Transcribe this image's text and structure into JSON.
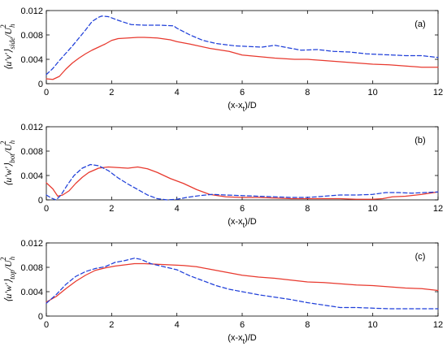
{
  "colors": {
    "red": "#e8392e",
    "blue": "#1f3fd9",
    "axis": "#000000",
    "background": "#ffffff"
  },
  "chart_data": [
    {
      "type": "line",
      "panel_label": "(a)",
      "xlabel_base": "(x-x",
      "xlabel_sub": "t",
      "xlabel_tail": ")/D",
      "ylabel_main": "⟨u′v′⟩",
      "ylabel_sub": "side",
      "ylabel_den": "/U",
      "ylabel_den_sub": "h",
      "ylabel_den_sup": "2",
      "xlim": [
        0,
        12
      ],
      "ylim": [
        0,
        0.012
      ],
      "x_ticks": [
        0,
        2,
        4,
        6,
        8,
        10,
        12
      ],
      "y_ticks": [
        0,
        0.004,
        0.008,
        0.012
      ],
      "y_tick_labels": [
        "0",
        "0.004",
        "0.008",
        "0.012"
      ],
      "x_tick_labels": [
        "0",
        "2",
        "4",
        "6",
        "8",
        "10",
        "12"
      ],
      "grid": false,
      "series": [
        {
          "color": "red",
          "style": "solid",
          "points": [
            [
              0,
              0.0008
            ],
            [
              0.2,
              0.0007
            ],
            [
              0.4,
              0.0012
            ],
            [
              0.6,
              0.0024
            ],
            [
              0.8,
              0.0034
            ],
            [
              1,
              0.0042
            ],
            [
              1.2,
              0.0049
            ],
            [
              1.4,
              0.0055
            ],
            [
              1.6,
              0.006
            ],
            [
              1.8,
              0.0065
            ],
            [
              2,
              0.0071
            ],
            [
              2.2,
              0.0074
            ],
            [
              2.5,
              0.0075
            ],
            [
              2.8,
              0.0076
            ],
            [
              3,
              0.0076
            ],
            [
              3.4,
              0.0075
            ],
            [
              3.8,
              0.0072
            ],
            [
              4,
              0.0069
            ],
            [
              4.4,
              0.0065
            ],
            [
              5,
              0.0058
            ],
            [
              5.6,
              0.0053
            ],
            [
              6,
              0.0047
            ],
            [
              6.6,
              0.0044
            ],
            [
              7,
              0.0042
            ],
            [
              7.6,
              0.004
            ],
            [
              8,
              0.004
            ],
            [
              8.5,
              0.0038
            ],
            [
              9,
              0.0036
            ],
            [
              9.5,
              0.0034
            ],
            [
              10,
              0.0032
            ],
            [
              10.5,
              0.0031
            ],
            [
              11,
              0.0029
            ],
            [
              11.5,
              0.0027
            ],
            [
              12,
              0.0027
            ]
          ]
        },
        {
          "color": "blue",
          "style": "dashed",
          "points": [
            [
              0,
              0.0015
            ],
            [
              0.2,
              0.0025
            ],
            [
              0.4,
              0.0038
            ],
            [
              0.6,
              0.005
            ],
            [
              0.8,
              0.0062
            ],
            [
              1,
              0.0075
            ],
            [
              1.2,
              0.0088
            ],
            [
              1.4,
              0.0102
            ],
            [
              1.6,
              0.0109
            ],
            [
              1.7,
              0.0111
            ],
            [
              1.9,
              0.011
            ],
            [
              2.2,
              0.0104
            ],
            [
              2.6,
              0.0097
            ],
            [
              3,
              0.0096
            ],
            [
              3.5,
              0.0096
            ],
            [
              3.9,
              0.0095
            ],
            [
              4,
              0.0091
            ],
            [
              4.4,
              0.008
            ],
            [
              4.8,
              0.0071
            ],
            [
              5.2,
              0.0066
            ],
            [
              5.8,
              0.0062
            ],
            [
              6.2,
              0.0061
            ],
            [
              6.6,
              0.006
            ],
            [
              7,
              0.0063
            ],
            [
              7.3,
              0.006
            ],
            [
              7.8,
              0.0055
            ],
            [
              8.3,
              0.0056
            ],
            [
              8.8,
              0.0053
            ],
            [
              9.3,
              0.0052
            ],
            [
              9.8,
              0.0049
            ],
            [
              10.2,
              0.0048
            ],
            [
              10.6,
              0.0047
            ],
            [
              11,
              0.0046
            ],
            [
              11.5,
              0.0046
            ],
            [
              12,
              0.0043
            ]
          ]
        }
      ]
    },
    {
      "type": "line",
      "panel_label": "(b)",
      "xlabel_base": "(x-x",
      "xlabel_sub": "t",
      "xlabel_tail": ")/D",
      "ylabel_main": "⟨u′w′⟩",
      "ylabel_sub": "bot",
      "ylabel_den": "/U",
      "ylabel_den_sub": "h",
      "ylabel_den_sup": "2",
      "xlim": [
        0,
        12
      ],
      "ylim": [
        0,
        0.012
      ],
      "x_ticks": [
        0,
        2,
        4,
        6,
        8,
        10,
        12
      ],
      "y_ticks": [
        0,
        0.004,
        0.008,
        0.012
      ],
      "y_tick_labels": [
        "0",
        "0.004",
        "0.008",
        "0.012"
      ],
      "x_tick_labels": [
        "0",
        "2",
        "4",
        "6",
        "8",
        "10",
        "12"
      ],
      "grid": false,
      "series": [
        {
          "color": "red",
          "style": "solid",
          "points": [
            [
              0,
              0.0028
            ],
            [
              0.2,
              0.0018
            ],
            [
              0.35,
              0.0006
            ],
            [
              0.5,
              0.0008
            ],
            [
              0.7,
              0.0015
            ],
            [
              0.9,
              0.0027
            ],
            [
              1.1,
              0.0037
            ],
            [
              1.3,
              0.0045
            ],
            [
              1.6,
              0.0052
            ],
            [
              1.9,
              0.0054
            ],
            [
              2.2,
              0.0053
            ],
            [
              2.5,
              0.0052
            ],
            [
              2.8,
              0.0054
            ],
            [
              3.1,
              0.0051
            ],
            [
              3.4,
              0.0045
            ],
            [
              3.8,
              0.0035
            ],
            [
              4.2,
              0.0027
            ],
            [
              4.6,
              0.0017
            ],
            [
              5,
              0.0009
            ],
            [
              5.5,
              0.0005
            ],
            [
              6,
              0.0004
            ],
            [
              6.5,
              0.0004
            ],
            [
              7,
              0.0003
            ],
            [
              7.5,
              0.0002
            ],
            [
              8,
              0.0002
            ],
            [
              8.5,
              0.0002
            ],
            [
              9,
              0.0002
            ],
            [
              9.5,
              0.0001
            ],
            [
              10,
              0.0001
            ],
            [
              10.3,
              0.0002
            ],
            [
              10.6,
              0.0005
            ],
            [
              11,
              0.0006
            ],
            [
              11.5,
              0.0009
            ],
            [
              12,
              0.0013
            ]
          ]
        },
        {
          "color": "blue",
          "style": "dashed",
          "points": [
            [
              0,
              0.0008
            ],
            [
              0.15,
              0.0003
            ],
            [
              0.3,
              0.0
            ],
            [
              0.45,
              0.0008
            ],
            [
              0.65,
              0.0025
            ],
            [
              0.85,
              0.004
            ],
            [
              1.1,
              0.0052
            ],
            [
              1.35,
              0.0058
            ],
            [
              1.6,
              0.0056
            ],
            [
              1.9,
              0.0048
            ],
            [
              2.2,
              0.0036
            ],
            [
              2.5,
              0.0026
            ],
            [
              2.8,
              0.0017
            ],
            [
              3.1,
              0.0008
            ],
            [
              3.4,
              0.0002
            ],
            [
              3.7,
              0.0
            ],
            [
              4,
              0.0001
            ],
            [
              4.3,
              0.0004
            ],
            [
              4.7,
              0.0007
            ],
            [
              5.1,
              0.0009
            ],
            [
              5.5,
              0.0008
            ],
            [
              6,
              0.0007
            ],
            [
              6.5,
              0.0006
            ],
            [
              7,
              0.0005
            ],
            [
              7.5,
              0.0004
            ],
            [
              8,
              0.0004
            ],
            [
              8.5,
              0.0006
            ],
            [
              9,
              0.0008
            ],
            [
              9.5,
              0.0008
            ],
            [
              10,
              0.0009
            ],
            [
              10.4,
              0.0012
            ],
            [
              10.8,
              0.0012
            ],
            [
              11.2,
              0.0011
            ],
            [
              11.6,
              0.0012
            ],
            [
              12,
              0.0013
            ]
          ]
        }
      ]
    },
    {
      "type": "line",
      "panel_label": "(c)",
      "xlabel_base": "(x-x",
      "xlabel_sub": "t",
      "xlabel_tail": ")/D",
      "ylabel_main": "⟨u′w′⟩",
      "ylabel_sub": "top",
      "ylabel_den": "/U",
      "ylabel_den_sub": "h",
      "ylabel_den_sup": "2",
      "xlim": [
        0,
        12
      ],
      "ylim": [
        0,
        0.012
      ],
      "x_ticks": [
        0,
        2,
        4,
        6,
        8,
        10,
        12
      ],
      "y_ticks": [
        0,
        0.004,
        0.008,
        0.012
      ],
      "y_tick_labels": [
        "0",
        "0.004",
        "0.008",
        "0.012"
      ],
      "x_tick_labels": [
        "0",
        "2",
        "4",
        "6",
        "8",
        "10",
        "12"
      ],
      "grid": false,
      "series": [
        {
          "color": "red",
          "style": "solid",
          "points": [
            [
              0,
              0.0023
            ],
            [
              0.3,
              0.0032
            ],
            [
              0.6,
              0.0045
            ],
            [
              0.9,
              0.0057
            ],
            [
              1.2,
              0.0067
            ],
            [
              1.5,
              0.0075
            ],
            [
              1.8,
              0.0079
            ],
            [
              2.1,
              0.0082
            ],
            [
              2.4,
              0.0084
            ],
            [
              2.7,
              0.0086
            ],
            [
              3,
              0.0086
            ],
            [
              3.4,
              0.0085
            ],
            [
              3.8,
              0.0084
            ],
            [
              4.2,
              0.0083
            ],
            [
              4.6,
              0.0081
            ],
            [
              5,
              0.0077
            ],
            [
              5.5,
              0.0072
            ],
            [
              6,
              0.0067
            ],
            [
              6.5,
              0.0064
            ],
            [
              7,
              0.0062
            ],
            [
              7.5,
              0.0059
            ],
            [
              8,
              0.0056
            ],
            [
              8.5,
              0.0055
            ],
            [
              9,
              0.0053
            ],
            [
              9.5,
              0.0051
            ],
            [
              10,
              0.005
            ],
            [
              10.5,
              0.0048
            ],
            [
              11,
              0.0046
            ],
            [
              11.5,
              0.0045
            ],
            [
              12,
              0.0042
            ]
          ]
        },
        {
          "color": "blue",
          "style": "dashed",
          "points": [
            [
              0,
              0.0021
            ],
            [
              0.3,
              0.0035
            ],
            [
              0.6,
              0.0052
            ],
            [
              0.9,
              0.0065
            ],
            [
              1.2,
              0.0073
            ],
            [
              1.5,
              0.0078
            ],
            [
              1.8,
              0.0081
            ],
            [
              2.1,
              0.0088
            ],
            [
              2.4,
              0.0091
            ],
            [
              2.7,
              0.0095
            ],
            [
              2.9,
              0.0093
            ],
            [
              3.2,
              0.0086
            ],
            [
              3.6,
              0.0081
            ],
            [
              4,
              0.0076
            ],
            [
              4.4,
              0.0066
            ],
            [
              4.8,
              0.0058
            ],
            [
              5.2,
              0.005
            ],
            [
              5.6,
              0.0044
            ],
            [
              6,
              0.004
            ],
            [
              6.5,
              0.0035
            ],
            [
              7,
              0.0031
            ],
            [
              7.5,
              0.0027
            ],
            [
              8,
              0.0022
            ],
            [
              8.5,
              0.0018
            ],
            [
              9,
              0.0014
            ],
            [
              9.5,
              0.0014
            ],
            [
              10,
              0.0013
            ],
            [
              10.5,
              0.0012
            ],
            [
              11,
              0.0012
            ],
            [
              11.5,
              0.0012
            ],
            [
              12,
              0.0012
            ]
          ]
        }
      ]
    }
  ]
}
